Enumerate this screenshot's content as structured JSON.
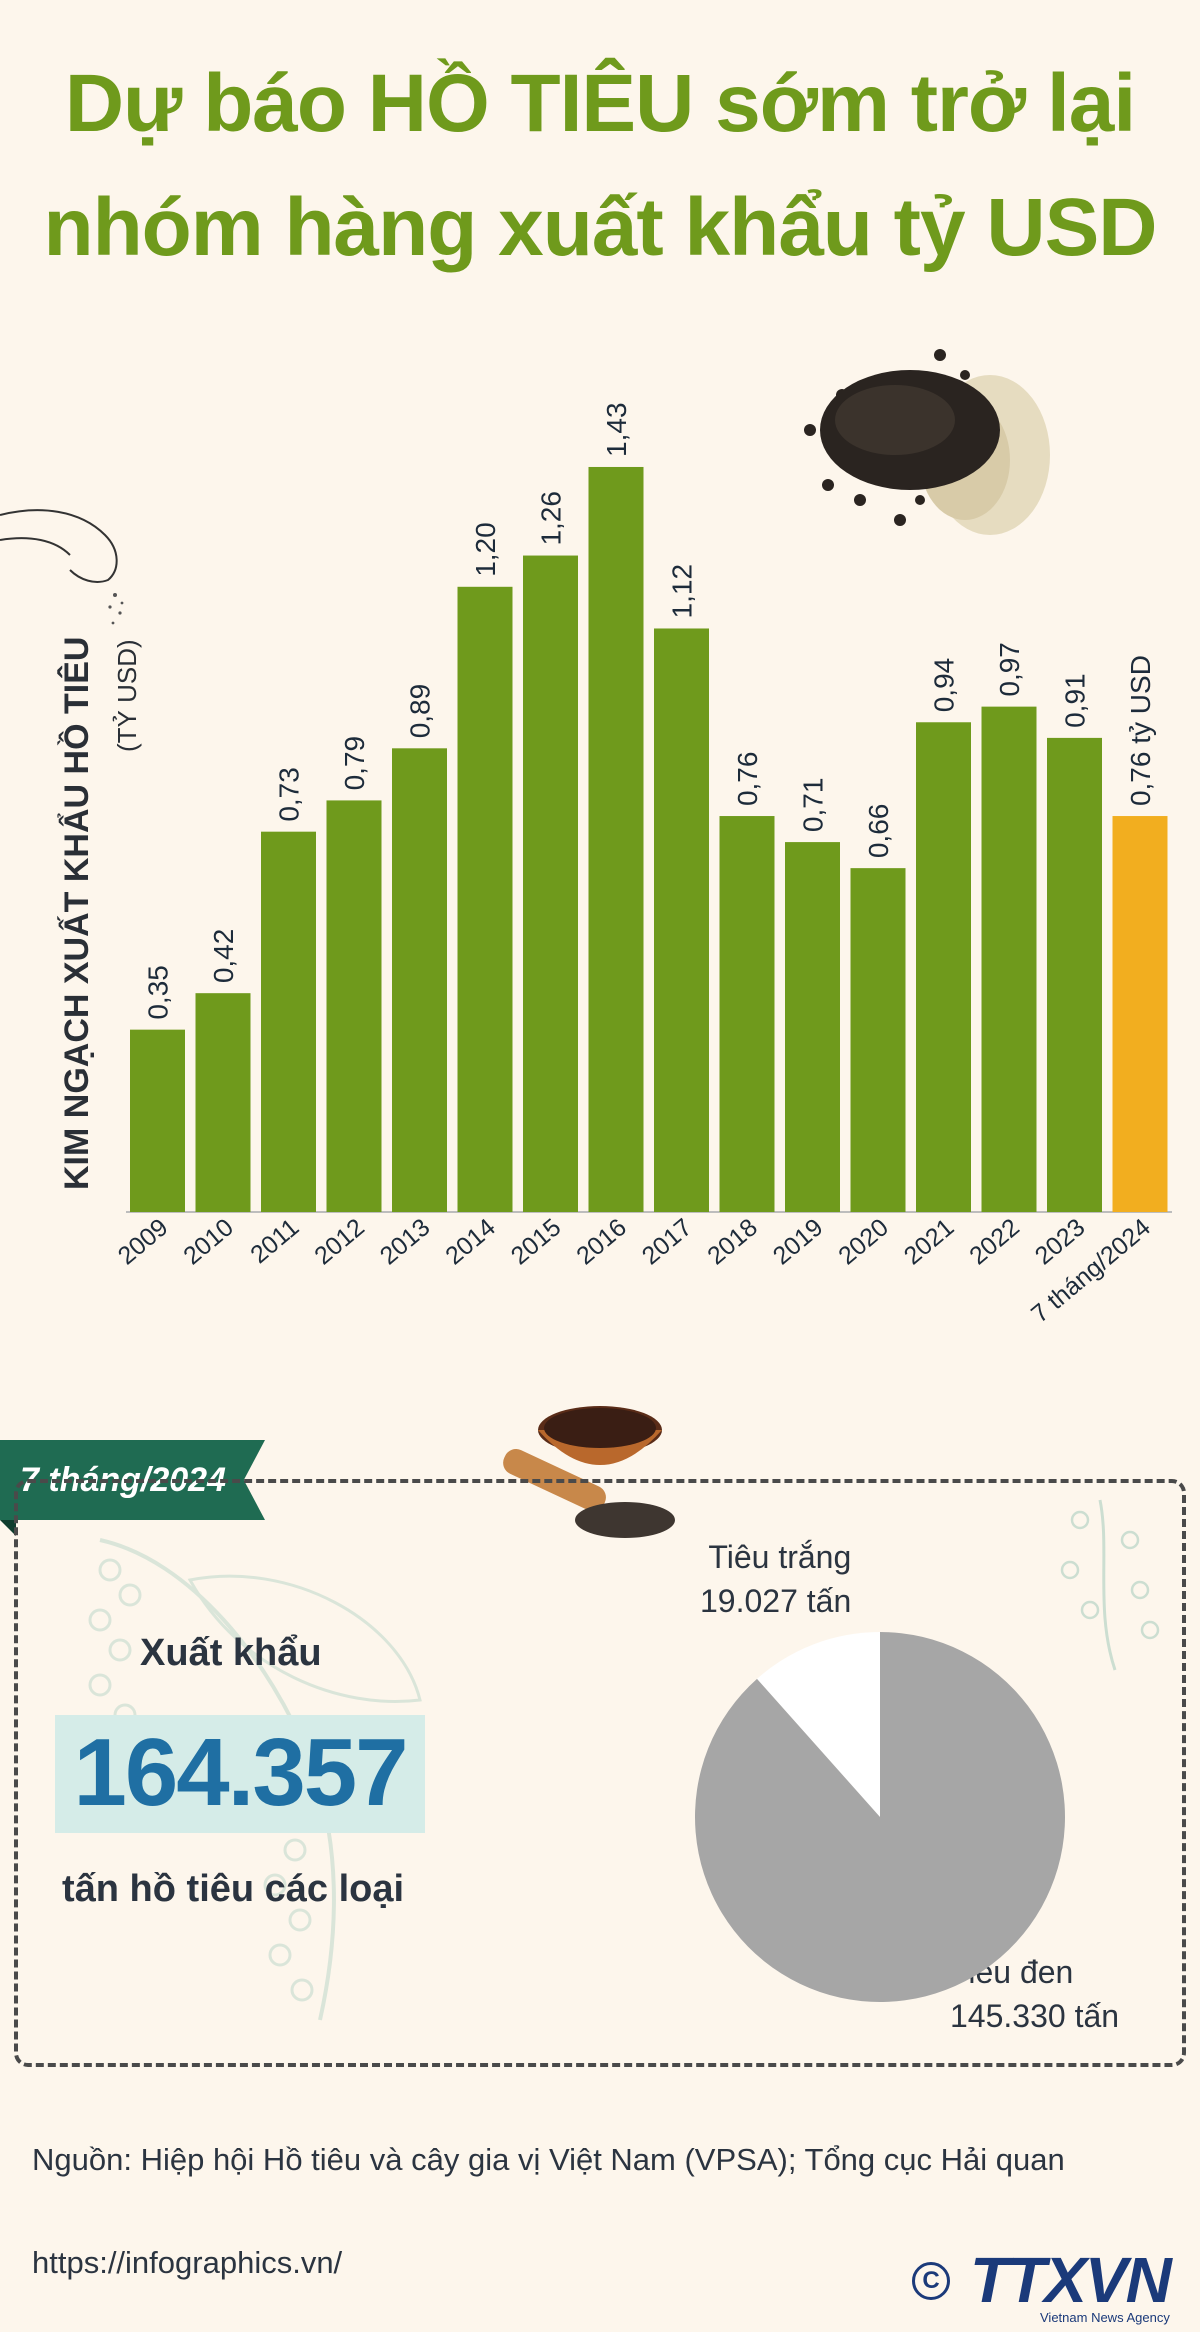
{
  "title": {
    "line1": "Dự báo HỒ TIÊU sớm trở lại",
    "line2": "nhóm hàng xuất khẩu tỷ USD"
  },
  "chart_data": {
    "type": "bar",
    "ylabel": "KIM NGẠCH XUẤT KHẨU HỒ TIÊU",
    "yunit": "(TỶ USD)",
    "categories": [
      "2009",
      "2010",
      "2011",
      "2012",
      "2013",
      "2014",
      "2015",
      "2016",
      "2017",
      "2018",
      "2019",
      "2020",
      "2021",
      "2022",
      "2023",
      "7 tháng/2024"
    ],
    "values": [
      0.35,
      0.42,
      0.73,
      0.79,
      0.89,
      1.2,
      1.26,
      1.43,
      1.12,
      0.76,
      0.71,
      0.66,
      0.94,
      0.97,
      0.91,
      0.76
    ],
    "value_labels": [
      "0,35",
      "0,42",
      "0,73",
      "0,79",
      "0,89",
      "1,20",
      "1,26",
      "1,43",
      "1,12",
      "0,76",
      "0,71",
      "0,66",
      "0,94",
      "0,97",
      "0,91",
      "0,76 tỷ USD"
    ],
    "ylim": [
      0,
      1.5
    ],
    "colors": {
      "default": "#6f9a1c",
      "highlight": "#f2ae1f"
    },
    "highlight_index": 15
  },
  "summary": {
    "period_tag": "7 tháng/2024",
    "export_label": "Xuất khẩu",
    "export_value": "164.357",
    "export_unit": "tấn hồ tiêu các loại"
  },
  "pie_data": {
    "type": "pie",
    "slices": [
      {
        "name": "Tiêu trắng",
        "value": 19027,
        "label": "19.027 tấn",
        "color": "#ffffff"
      },
      {
        "name": "Tiêu đen",
        "value": 145330,
        "label": "145.330 tấn",
        "color": "#a6a6a6"
      }
    ]
  },
  "footer": {
    "source": "Nguồn: Hiệp hội Hồ tiêu và cây gia vị Việt Nam (VPSA); Tổng cục Hải quan",
    "url": "https://infographics.vn/",
    "copyright_symbol": "C",
    "logo_text": "TTXVN",
    "logo_sub": "Vietnam News Agency"
  }
}
